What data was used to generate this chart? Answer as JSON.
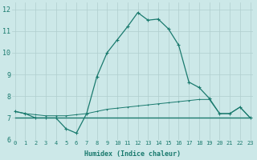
{
  "xlabel": "Humidex (Indice chaleur)",
  "x": [
    0,
    1,
    2,
    3,
    4,
    5,
    6,
    7,
    8,
    9,
    10,
    11,
    12,
    13,
    14,
    15,
    16,
    17,
    18,
    19,
    20,
    21,
    22,
    23
  ],
  "line1": [
    7.3,
    7.2,
    7.0,
    7.0,
    7.0,
    6.5,
    6.3,
    7.2,
    8.9,
    10.0,
    10.6,
    11.2,
    11.85,
    11.5,
    11.55,
    11.1,
    10.35,
    8.65,
    8.4,
    7.9,
    7.2,
    7.2,
    7.5,
    7.0
  ],
  "line2": [
    7.3,
    7.2,
    7.15,
    7.1,
    7.1,
    7.1,
    7.15,
    7.2,
    7.3,
    7.4,
    7.45,
    7.5,
    7.55,
    7.6,
    7.65,
    7.7,
    7.75,
    7.8,
    7.85,
    7.85,
    7.2,
    7.2,
    7.5,
    7.0
  ],
  "line3": [
    7.0,
    7.0,
    7.0,
    7.0,
    7.0,
    7.0,
    7.0,
    7.0,
    7.0,
    7.0,
    7.0,
    7.0,
    7.0,
    7.0,
    7.0,
    7.0,
    7.0,
    7.0,
    7.0,
    7.0,
    7.0,
    7.0,
    7.0,
    7.0
  ],
  "line_color": "#1a7a6e",
  "bg_color": "#cce8e8",
  "grid_color": "#b0cece",
  "ylim": [
    6.0,
    12.3
  ],
  "yticks": [
    6,
    7,
    8,
    9,
    10,
    11,
    12
  ],
  "xticks": [
    0,
    1,
    2,
    3,
    4,
    5,
    6,
    7,
    8,
    9,
    10,
    11,
    12,
    13,
    14,
    15,
    16,
    17,
    18,
    19,
    20,
    21,
    22,
    23
  ],
  "xlabel_fontsize": 6.0,
  "ytick_fontsize": 6.0,
  "xtick_fontsize": 5.0
}
